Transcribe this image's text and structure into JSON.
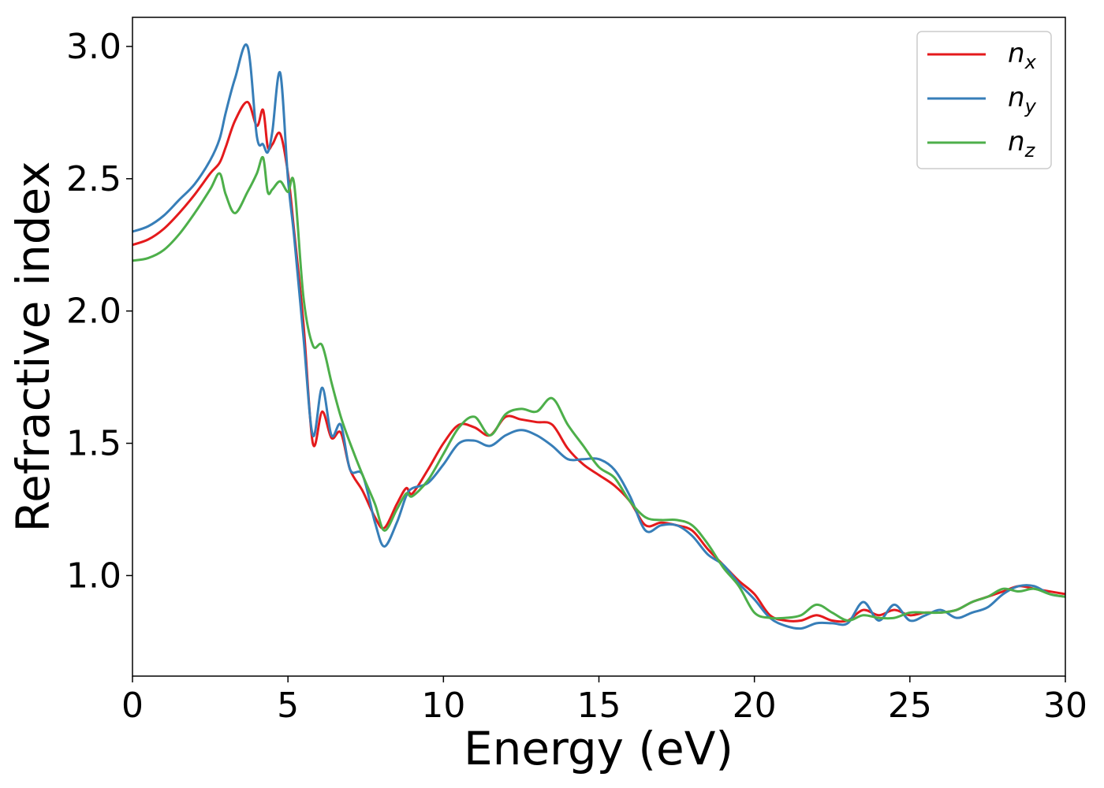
{
  "chart_data": {
    "type": "line",
    "xlabel": "Energy (eV)",
    "ylabel": "Refractive index",
    "xlim": [
      0,
      30
    ],
    "ylim": [
      0.62,
      3.11
    ],
    "xticks": [
      0,
      5,
      10,
      15,
      20,
      25,
      30
    ],
    "xtick_labels": [
      "0",
      "5",
      "10",
      "15",
      "20",
      "25",
      "30"
    ],
    "yticks": [
      1.0,
      1.5,
      2.0,
      2.5,
      3.0
    ],
    "ytick_labels": [
      "1.0",
      "1.5",
      "2.0",
      "2.5",
      "3.0"
    ],
    "grid": false,
    "legend_position": "top-right",
    "series": [
      {
        "name": "n",
        "subscript": "x",
        "color": "#e41a1c",
        "x": [
          0,
          0.5,
          1.0,
          1.5,
          2.0,
          2.5,
          2.8,
          3.0,
          3.3,
          3.7,
          4.0,
          4.2,
          4.35,
          4.5,
          4.75,
          5.0,
          5.2,
          5.5,
          5.8,
          6.1,
          6.4,
          6.7,
          7.0,
          7.4,
          7.8,
          8.1,
          8.5,
          8.8,
          9.0,
          9.5,
          10.0,
          10.5,
          11.0,
          11.5,
          12.0,
          12.5,
          13.0,
          13.5,
          14.0,
          14.5,
          15.0,
          15.5,
          16.0,
          16.5,
          17.0,
          17.5,
          18.0,
          18.5,
          19.0,
          19.5,
          20.0,
          20.5,
          21.0,
          21.5,
          22.0,
          22.5,
          23.0,
          23.5,
          24.0,
          24.5,
          25.0,
          25.5,
          26.0,
          26.5,
          27.0,
          27.5,
          28.0,
          28.5,
          29.0,
          29.5,
          30.0
        ],
        "y": [
          2.25,
          2.27,
          2.31,
          2.37,
          2.44,
          2.52,
          2.56,
          2.62,
          2.72,
          2.79,
          2.7,
          2.76,
          2.62,
          2.63,
          2.67,
          2.52,
          2.3,
          1.95,
          1.5,
          1.62,
          1.52,
          1.54,
          1.4,
          1.32,
          1.22,
          1.18,
          1.27,
          1.33,
          1.31,
          1.4,
          1.5,
          1.57,
          1.56,
          1.53,
          1.6,
          1.59,
          1.58,
          1.57,
          1.48,
          1.42,
          1.38,
          1.34,
          1.28,
          1.19,
          1.2,
          1.19,
          1.17,
          1.1,
          1.04,
          0.98,
          0.93,
          0.85,
          0.83,
          0.83,
          0.85,
          0.83,
          0.83,
          0.87,
          0.85,
          0.87,
          0.85,
          0.86,
          0.86,
          0.87,
          0.9,
          0.92,
          0.94,
          0.96,
          0.95,
          0.94,
          0.93
        ]
      },
      {
        "name": "n",
        "subscript": "y",
        "color": "#377eb8",
        "x": [
          0,
          0.5,
          1.0,
          1.5,
          2.0,
          2.5,
          2.8,
          3.0,
          3.3,
          3.7,
          4.0,
          4.2,
          4.35,
          4.5,
          4.75,
          5.0,
          5.2,
          5.5,
          5.8,
          6.1,
          6.4,
          6.7,
          7.0,
          7.4,
          7.8,
          8.1,
          8.5,
          8.8,
          9.0,
          9.5,
          10.0,
          10.5,
          11.0,
          11.5,
          12.0,
          12.5,
          13.0,
          13.5,
          14.0,
          14.5,
          15.0,
          15.5,
          16.0,
          16.5,
          17.0,
          17.5,
          18.0,
          18.5,
          19.0,
          19.5,
          20.0,
          20.5,
          21.0,
          21.5,
          22.0,
          22.5,
          23.0,
          23.5,
          24.0,
          24.5,
          25.0,
          25.5,
          26.0,
          26.5,
          27.0,
          27.5,
          28.0,
          28.5,
          29.0,
          29.5,
          30.0
        ],
        "y": [
          2.3,
          2.32,
          2.36,
          2.42,
          2.48,
          2.57,
          2.65,
          2.75,
          2.88,
          3.0,
          2.66,
          2.63,
          2.6,
          2.68,
          2.9,
          2.5,
          2.28,
          1.9,
          1.53,
          1.71,
          1.53,
          1.57,
          1.4,
          1.38,
          1.2,
          1.11,
          1.2,
          1.3,
          1.33,
          1.35,
          1.42,
          1.5,
          1.51,
          1.49,
          1.53,
          1.55,
          1.53,
          1.49,
          1.44,
          1.44,
          1.44,
          1.4,
          1.3,
          1.17,
          1.19,
          1.19,
          1.15,
          1.08,
          1.04,
          0.97,
          0.91,
          0.84,
          0.81,
          0.8,
          0.82,
          0.82,
          0.82,
          0.9,
          0.83,
          0.89,
          0.83,
          0.85,
          0.87,
          0.84,
          0.86,
          0.88,
          0.93,
          0.96,
          0.96,
          0.93,
          0.92
        ]
      },
      {
        "name": "n",
        "subscript": "z",
        "color": "#4daf4a",
        "x": [
          0,
          0.5,
          1.0,
          1.5,
          2.0,
          2.5,
          2.8,
          3.0,
          3.3,
          3.7,
          4.0,
          4.2,
          4.35,
          4.5,
          4.75,
          5.0,
          5.2,
          5.5,
          5.8,
          6.1,
          6.4,
          6.7,
          7.0,
          7.4,
          7.8,
          8.1,
          8.5,
          8.8,
          9.0,
          9.5,
          10.0,
          10.5,
          11.0,
          11.5,
          12.0,
          12.5,
          13.0,
          13.5,
          14.0,
          14.5,
          15.0,
          15.5,
          16.0,
          16.5,
          17.0,
          17.5,
          18.0,
          18.5,
          19.0,
          19.5,
          20.0,
          20.5,
          21.0,
          21.5,
          22.0,
          22.5,
          23.0,
          23.5,
          24.0,
          24.5,
          25.0,
          25.5,
          26.0,
          26.5,
          27.0,
          27.5,
          28.0,
          28.5,
          29.0,
          29.5,
          30.0
        ],
        "y": [
          2.19,
          2.2,
          2.23,
          2.29,
          2.37,
          2.46,
          2.52,
          2.44,
          2.37,
          2.45,
          2.52,
          2.58,
          2.45,
          2.46,
          2.49,
          2.45,
          2.48,
          2.05,
          1.87,
          1.87,
          1.73,
          1.6,
          1.5,
          1.38,
          1.27,
          1.17,
          1.25,
          1.31,
          1.3,
          1.36,
          1.46,
          1.56,
          1.6,
          1.53,
          1.61,
          1.63,
          1.62,
          1.67,
          1.57,
          1.49,
          1.41,
          1.37,
          1.28,
          1.22,
          1.21,
          1.21,
          1.19,
          1.12,
          1.03,
          0.96,
          0.86,
          0.84,
          0.84,
          0.85,
          0.89,
          0.86,
          0.83,
          0.85,
          0.84,
          0.84,
          0.86,
          0.86,
          0.86,
          0.87,
          0.9,
          0.92,
          0.95,
          0.94,
          0.95,
          0.93,
          0.92
        ]
      }
    ]
  }
}
